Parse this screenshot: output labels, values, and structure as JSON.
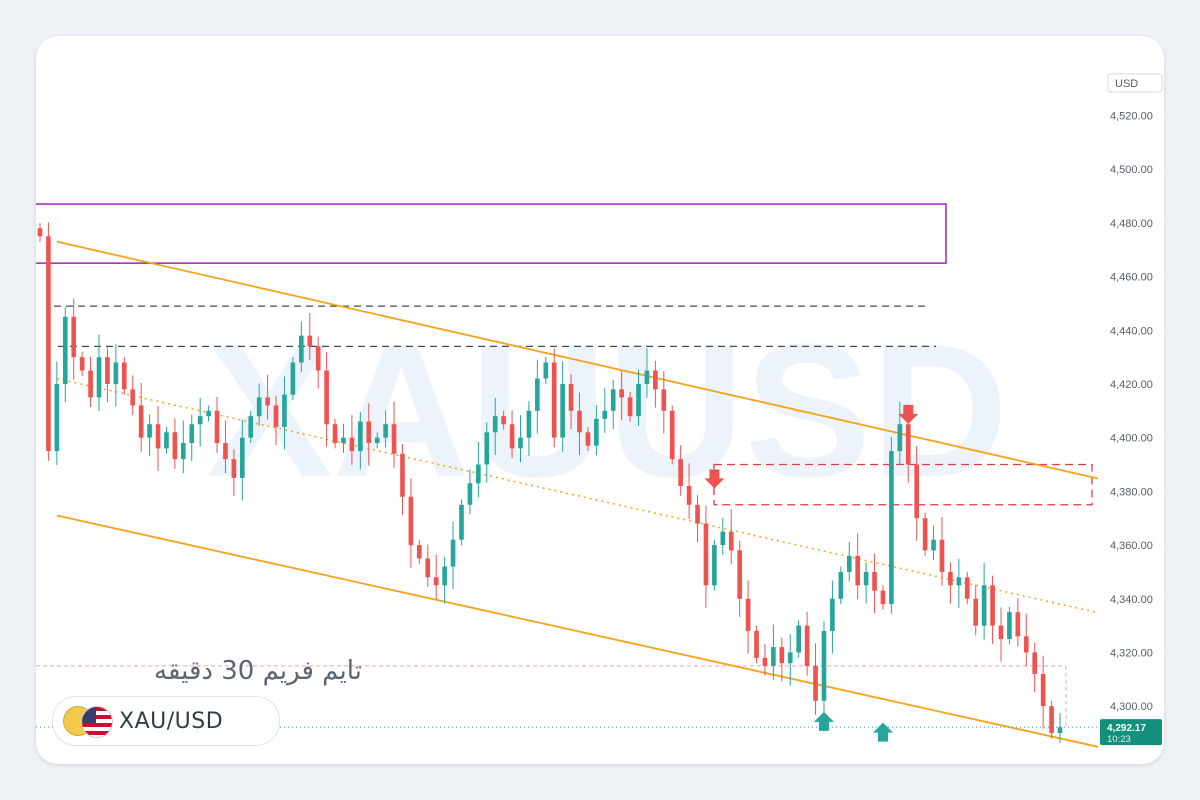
{
  "chart_data": {
    "type": "candlestick",
    "symbol": "XAU/USD",
    "watermark": "XAUUSD",
    "timeframe_label": "تایم فریم 30 دقیقه",
    "currency": "USD",
    "ylim": [
      4290,
      4528
    ],
    "y_ticks": [
      4520,
      4500,
      4480,
      4460,
      4440,
      4420,
      4400,
      4380,
      4360,
      4340,
      4320,
      4300
    ],
    "y_tick_labels": [
      "4,520.00",
      "4,500.00",
      "4,480.00",
      "4,460.00",
      "4,440.00",
      "4,420.00",
      "4,400.00",
      "4,380.00",
      "4,360.00",
      "4,340.00",
      "4,320.00",
      "4,300.00"
    ],
    "last_price": 4292.17,
    "last_price_label": "4,292.17",
    "countdown": "10:23",
    "closes": [
      4475,
      4395,
      4420,
      4445,
      4430,
      4425,
      4415,
      4430,
      4420,
      4428,
      4418,
      4412,
      4400,
      4405,
      4396,
      4402,
      4392,
      4398,
      4405,
      4408,
      4410,
      4398,
      4392,
      4385,
      4400,
      4408,
      4415,
      4412,
      4404,
      4416,
      4428,
      4438,
      4434,
      4425,
      4405,
      4398,
      4400,
      4395,
      4406,
      4398,
      4400,
      4405,
      4394,
      4378,
      4360,
      4355,
      4348,
      4345,
      4352,
      4362,
      4375,
      4383,
      4390,
      4402,
      4408,
      4405,
      4396,
      4400,
      4410,
      4422,
      4428,
      4400,
      4420,
      4410,
      4402,
      4397,
      4407,
      4410,
      4418,
      4415,
      4408,
      4420,
      4425,
      4418,
      4410,
      4392,
      4382,
      4375,
      4368,
      4345,
      4360,
      4365,
      4358,
      4340,
      4328,
      4318,
      4315,
      4322,
      4316,
      4320,
      4330,
      4315,
      4302,
      4328,
      4340,
      4350,
      4356,
      4345,
      4350,
      4343,
      4338,
      4395,
      4405,
      4390,
      4370,
      4358,
      4362,
      4350,
      4345,
      4348,
      4340,
      4330,
      4345,
      4330,
      4325,
      4335,
      4326,
      4320,
      4312,
      4300,
      4290,
      4292.17
    ],
    "resistance_zone": [
      4465,
      4487
    ],
    "supply_zone": [
      4375,
      4390
    ],
    "dashed_levels": [
      4449,
      4434
    ],
    "support_level": 4315,
    "channel_upper": [
      {
        "x": 2,
        "y": 4473
      },
      {
        "x": 121,
        "y": 4388
      }
    ],
    "channel_lower": [
      {
        "x": 2,
        "y": 4371
      },
      {
        "x": 121,
        "y": 4288
      }
    ],
    "channel_mid": [
      {
        "x": 2,
        "y": 4422
      },
      {
        "x": 121,
        "y": 4338
      }
    ],
    "markers": [
      {
        "type": "down",
        "x": 80,
        "y": 4380
      },
      {
        "type": "down",
        "x": 103,
        "y": 4404
      },
      {
        "type": "up",
        "x": 93,
        "y": 4296
      },
      {
        "type": "up",
        "x": 100,
        "y": 4292
      }
    ],
    "colors": {
      "up": "#26a69a",
      "down": "#ef5350",
      "channel": "#f7a21b",
      "zone": "#9c27b0",
      "supply": "#e53945",
      "level": "#4a4a4a",
      "badge": "#138f7e"
    }
  }
}
